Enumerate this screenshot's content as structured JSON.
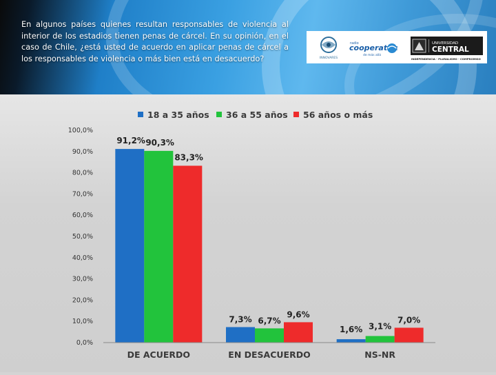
{
  "header": {
    "question": "En algunos países quienes resultan responsables de violencia al interior de los estadios tienen penas de cárcel. En su opinión, en el caso de Chile, ¿está usted de acuerdo en aplicar penas de cárcel a los responsables de violencia o más bien está en desacuerdo?"
  },
  "logos": {
    "instituto": "INNOVARES",
    "cooperativa_small": "radio",
    "cooperativa": "cooperativa",
    "cooperativa_sub": "de más allá",
    "universidad": "UNIVERSIDAD",
    "central": "CENTRAL",
    "central_tagline": "INDEPENDENCIA - PLURALISMO - COMPROMISO"
  },
  "colors": {
    "series_1": "#1f6fc5",
    "series_2": "#22c33c",
    "series_3": "#ee2b2b"
  },
  "chart_data": {
    "type": "bar",
    "categories": [
      "DE ACUERDO",
      "EN DESACUERDO",
      "NS-NR"
    ],
    "series": [
      {
        "name": "18 a 35 años",
        "values": [
          91.2,
          7.3,
          1.6
        ],
        "labels": [
          "91,2%",
          "7,3%",
          "1,6%"
        ]
      },
      {
        "name": "36 a 55 años",
        "values": [
          90.3,
          6.7,
          3.1
        ],
        "labels": [
          "90,3%",
          "6,7%",
          "3,1%"
        ]
      },
      {
        "name": "56 años o más",
        "values": [
          83.3,
          9.6,
          7.0
        ],
        "labels": [
          "83,3%",
          "9,6%",
          "7,0%"
        ]
      }
    ],
    "yticks": [
      "0,0%",
      "10,0%",
      "20,0%",
      "30,0%",
      "40,0%",
      "50,0%",
      "60,0%",
      "70,0%",
      "80,0%",
      "90,0%",
      "100,0%"
    ],
    "ylim": [
      0,
      100
    ],
    "legend_position": "top",
    "grid": false
  }
}
